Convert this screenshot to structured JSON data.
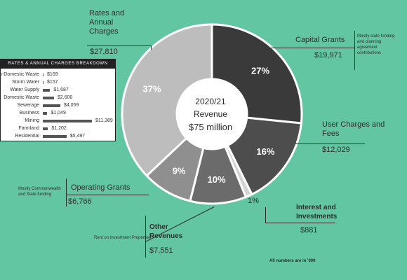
{
  "chart_data": [
    {
      "type": "pie",
      "donut": true,
      "center_text": [
        "2020/21",
        "Revenue",
        "$75 million"
      ],
      "units_note": "All numbers are in '000",
      "slices": [
        {
          "label": "Capital Grants",
          "value": 19971,
          "display_value": "$19,971",
          "percent_label": "27%",
          "note": "Mostly state funding and planning agreement contributions",
          "color": "#3a3a3a"
        },
        {
          "label": "User Charges and Fees",
          "value": 12029,
          "display_value": "$12,029",
          "percent_label": "16%",
          "color": "#4d4d4d"
        },
        {
          "label": "Interest and Investments",
          "value": 881,
          "display_value": "$881",
          "percent_label": "1%",
          "color": "#d3d3d3"
        },
        {
          "label": "Other Revenues",
          "value": 7551,
          "display_value": "$7,551",
          "percent_label": "10%",
          "note": "Rent on Investment Properties",
          "color": "#6b6b6b"
        },
        {
          "label": "Operating Grants",
          "value": 6766,
          "display_value": "$6,766",
          "percent_label": "9%",
          "note": "Mostly Commonwealth and State funding",
          "color": "#8f8f8f"
        },
        {
          "label": "Rates and Annual Charges",
          "value": 27810,
          "display_value": "$27,810",
          "percent_label": "37%",
          "color": "#bdbdbd"
        }
      ]
    },
    {
      "type": "bar",
      "orientation": "horizontal",
      "title": "RATES & ANNUAL CHARGES BREAKDOWN",
      "categories": [
        "Non-Domestic Waste",
        "Storm Water",
        "Water Supply",
        "Domestic Waste",
        "Sewerage",
        "Business",
        "Mining",
        "Farmland",
        "Residential"
      ],
      "values": [
        169,
        157,
        1687,
        2600,
        4059,
        1049,
        11389,
        1202,
        5497
      ],
      "value_labels": [
        "$169",
        "$157",
        "$1,687",
        "$2,600",
        "$4,059",
        "$1,049",
        "$11,389",
        "$1,202",
        "$5,497"
      ],
      "bar_color": "#555555"
    }
  ]
}
